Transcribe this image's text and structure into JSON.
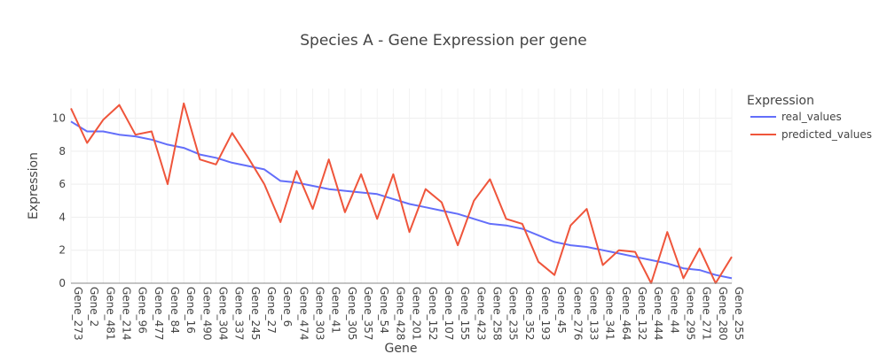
{
  "chart_data": {
    "type": "line",
    "title": "Species A - Gene Expression per gene",
    "xlabel": "Gene",
    "ylabel": "Expression",
    "ylim": [
      0,
      11.8
    ],
    "yticks": [
      0,
      2,
      4,
      6,
      8,
      10
    ],
    "grid": true,
    "legend": {
      "title": "Expression",
      "placement": "right"
    },
    "categories": [
      "Gene_273",
      "Gene_2",
      "Gene_481",
      "Gene_214",
      "Gene_96",
      "Gene_477",
      "Gene_84",
      "Gene_16",
      "Gene_490",
      "Gene_304",
      "Gene_337",
      "Gene_245",
      "Gene_27",
      "Gene_6",
      "Gene_474",
      "Gene_303",
      "Gene_41",
      "Gene_305",
      "Gene_357",
      "Gene_54",
      "Gene_428",
      "Gene_201",
      "Gene_152",
      "Gene_107",
      "Gene_155",
      "Gene_423",
      "Gene_258",
      "Gene_235",
      "Gene_352",
      "Gene_193",
      "Gene_45",
      "Gene_276",
      "Gene_133",
      "Gene_341",
      "Gene_464",
      "Gene_132",
      "Gene_444",
      "Gene_44",
      "Gene_295",
      "Gene_271",
      "Gene_280",
      "Gene_255"
    ],
    "series": [
      {
        "name": "real_values",
        "color": "#636efa",
        "values": [
          9.8,
          9.2,
          9.2,
          9.0,
          8.9,
          8.7,
          8.4,
          8.2,
          7.8,
          7.6,
          7.3,
          7.1,
          6.9,
          6.2,
          6.1,
          5.9,
          5.7,
          5.6,
          5.5,
          5.4,
          5.1,
          4.8,
          4.6,
          4.4,
          4.2,
          3.9,
          3.6,
          3.5,
          3.3,
          2.9,
          2.5,
          2.3,
          2.2,
          2.0,
          1.8,
          1.6,
          1.4,
          1.2,
          0.9,
          0.8,
          0.5,
          0.3
        ]
      },
      {
        "name": "predicted_values",
        "color": "#ef553b",
        "values": [
          10.6,
          8.5,
          9.9,
          10.8,
          9.0,
          9.2,
          6.0,
          10.9,
          7.5,
          7.2,
          9.1,
          7.6,
          6.0,
          3.7,
          6.8,
          4.5,
          7.5,
          4.3,
          6.6,
          3.9,
          6.6,
          3.1,
          5.7,
          4.9,
          2.3,
          5.0,
          6.3,
          3.9,
          3.6,
          1.3,
          0.5,
          3.5,
          4.5,
          1.1,
          2.0,
          1.9,
          0.0,
          3.1,
          0.3,
          2.1,
          0.0,
          1.6
        ]
      }
    ]
  }
}
